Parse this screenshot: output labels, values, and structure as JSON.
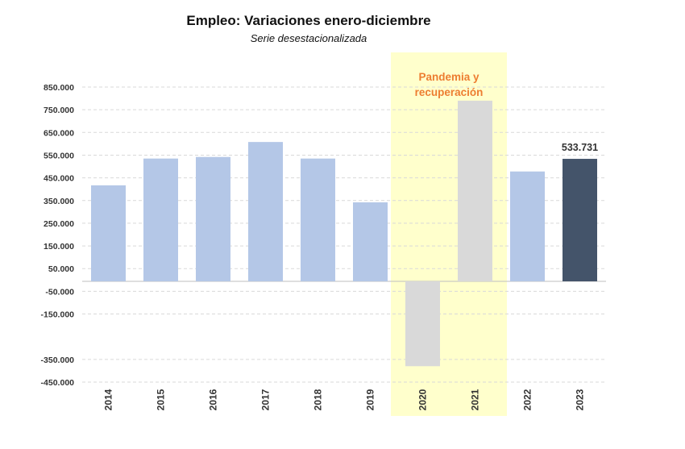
{
  "chart_data": {
    "type": "bar",
    "title": "Empleo: Variaciones enero-diciembre",
    "subtitle": "Serie desestacionalizada",
    "categories": [
      "2014",
      "2015",
      "2016",
      "2017",
      "2018",
      "2019",
      "2020",
      "2021",
      "2022",
      "2023"
    ],
    "values": [
      417000,
      535000,
      542000,
      608000,
      535000,
      342000,
      -380000,
      790000,
      478000,
      533731
    ],
    "ylim": [
      -450000,
      850000
    ],
    "yticks": [
      850000,
      750000,
      650000,
      550000,
      450000,
      350000,
      250000,
      150000,
      50000,
      -50000,
      -150000,
      -350000,
      -450000
    ],
    "ytick_labels": [
      "850.000",
      "750.000",
      "650.000",
      "550.000",
      "450.000",
      "350.000",
      "250.000",
      "150.000",
      "50.000",
      "-50.000",
      "-150.000",
      "-350.000",
      "-450.000"
    ],
    "xlabel": "",
    "ylabel": "",
    "grid": true,
    "highlight": {
      "categories": [
        "2020",
        "2021"
      ],
      "label_lines": [
        "Pandemia y",
        "recuperación"
      ],
      "color": "#FFFFCC",
      "label_color": "#ED7D31"
    },
    "bar_colors": [
      "#B4C7E7",
      "#B4C7E7",
      "#B4C7E7",
      "#B4C7E7",
      "#B4C7E7",
      "#B4C7E7",
      "#D9D9D9",
      "#D9D9D9",
      "#B4C7E7",
      "#44546A"
    ],
    "data_labels": [
      {
        "category": "2023",
        "text": "533.731"
      }
    ]
  }
}
